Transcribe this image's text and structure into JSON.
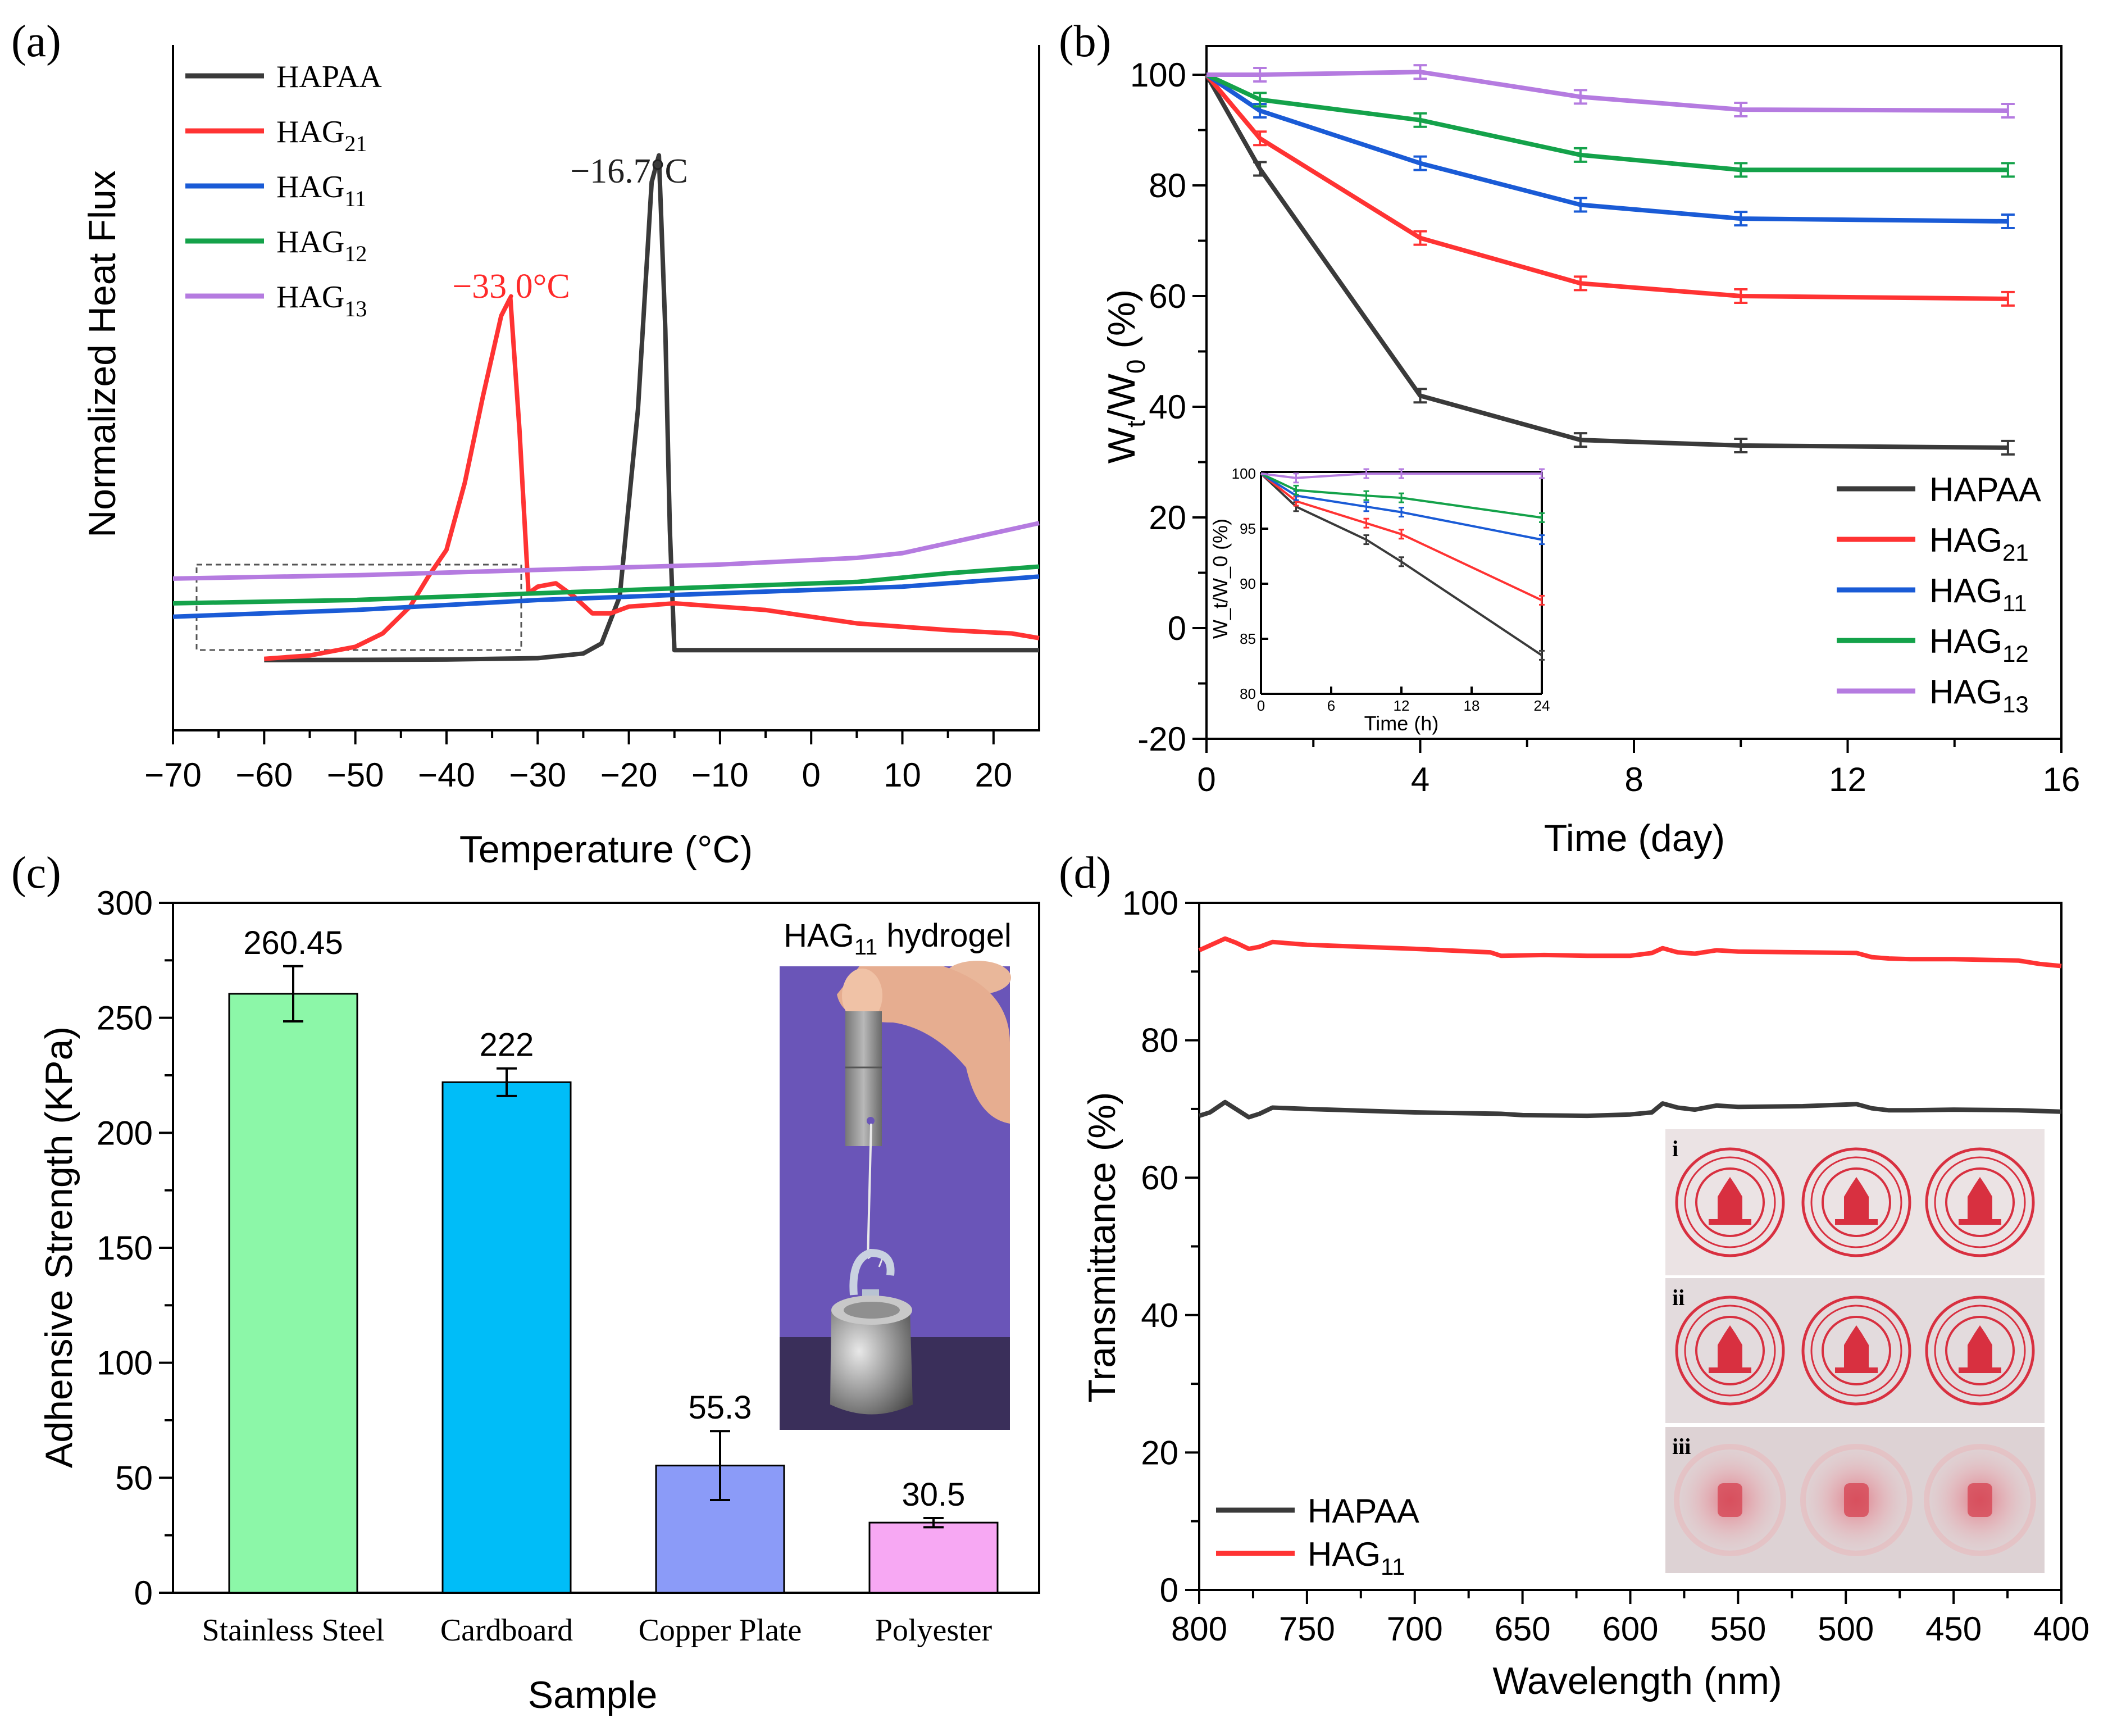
{
  "panels": {
    "a": "(a)",
    "b": "(b)",
    "c": "(c)",
    "d": "(d)"
  },
  "chart_data": [
    {
      "id": "a",
      "type": "line",
      "title": "",
      "xlabel": "Temperature (°C)",
      "ylabel": "Normalized Heat Flux",
      "xlim": [
        -70,
        25
      ],
      "xticks": [
        -70,
        -60,
        -50,
        -40,
        -30,
        -20,
        -10,
        0,
        10,
        20
      ],
      "xtick_labels": [
        "−70",
        "−60",
        "−50",
        "−40",
        "−30",
        "−20",
        "−10",
        "0",
        "10",
        "20"
      ],
      "ylim": [
        0,
        1
      ],
      "legend": [
        {
          "base": "HAPAA",
          "sub": ""
        },
        {
          "base": "HAG",
          "sub": "21"
        },
        {
          "base": "HAG",
          "sub": "11"
        },
        {
          "base": "HAG",
          "sub": "12"
        },
        {
          "base": "HAG",
          "sub": "13"
        }
      ],
      "annotations": [
        {
          "text": "−16.7°C",
          "x": -16.7,
          "y": 0.78,
          "color": "#222222"
        },
        {
          "text": "−33.0°C",
          "x": -33.0,
          "y": 0.62,
          "color": "#ff2a2a"
        }
      ],
      "series": [
        {
          "name": "HAPAA",
          "color": "#3a3a3a",
          "x": [
            -60,
            -40,
            -30,
            -25,
            -23,
            -21,
            -19,
            -17.5,
            -16.7,
            -16,
            -15.5,
            -15,
            -10,
            0,
            10,
            25
          ],
          "y": [
            0.105,
            0.106,
            0.108,
            0.115,
            0.13,
            0.2,
            0.48,
            0.82,
            0.86,
            0.6,
            0.3,
            0.12,
            0.12,
            0.12,
            0.12,
            0.12
          ]
        },
        {
          "name": "HAG21",
          "color": "#ff3333",
          "x": [
            -60,
            -55,
            -50,
            -47,
            -44,
            -42,
            -40,
            -38,
            -36,
            -34,
            -33,
            -32,
            -31,
            -30,
            -28,
            -26,
            -24,
            -22,
            -20,
            -15,
            -5,
            5,
            15,
            22,
            25
          ],
          "y": [
            0.107,
            0.112,
            0.125,
            0.145,
            0.185,
            0.23,
            0.27,
            0.37,
            0.5,
            0.62,
            0.647,
            0.45,
            0.205,
            0.215,
            0.22,
            0.2,
            0.175,
            0.175,
            0.185,
            0.19,
            0.18,
            0.16,
            0.15,
            0.145,
            0.138
          ]
        },
        {
          "name": "HAG11",
          "color": "#1a5bd6",
          "x": [
            -70,
            -50,
            -30,
            -10,
            10,
            25
          ],
          "y": [
            0.17,
            0.18,
            0.195,
            0.205,
            0.215,
            0.23
          ]
        },
        {
          "name": "HAG12",
          "color": "#14a24a",
          "x": [
            -70,
            -50,
            -30,
            -10,
            5,
            15,
            25
          ],
          "y": [
            0.19,
            0.195,
            0.205,
            0.215,
            0.222,
            0.235,
            0.245
          ]
        },
        {
          "name": "HAG13",
          "color": "#b57be0",
          "x": [
            -70,
            -50,
            -30,
            -10,
            5,
            10,
            15,
            20,
            25
          ],
          "y": [
            0.227,
            0.232,
            0.24,
            0.248,
            0.258,
            0.265,
            0.28,
            0.295,
            0.31
          ]
        }
      ]
    },
    {
      "id": "b",
      "type": "line",
      "title": "",
      "xlabel": "Time (day)",
      "ylabel": "W_t/W_0 (%)",
      "ylabel_parts": {
        "w1": "W",
        "s1": "t",
        "slash": "/W",
        "s2": "0",
        "unit": " (%)"
      },
      "xlim": [
        0,
        16
      ],
      "ylim": [
        -20,
        100
      ],
      "xticks": [
        0,
        4,
        8,
        12,
        16
      ],
      "yticks": [
        -20,
        0,
        20,
        40,
        60,
        80,
        100
      ],
      "legend": [
        {
          "base": "HAPAA",
          "sub": ""
        },
        {
          "base": "HAG",
          "sub": "21"
        },
        {
          "base": "HAG",
          "sub": "11"
        },
        {
          "base": "HAG",
          "sub": "12"
        },
        {
          "base": "HAG",
          "sub": "13"
        }
      ],
      "series": [
        {
          "name": "HAPAA",
          "color": "#3a3a3a",
          "x": [
            0,
            1,
            4,
            7,
            10,
            15
          ],
          "y": [
            100,
            83,
            42,
            34,
            33,
            32.6
          ]
        },
        {
          "name": "HAG21",
          "color": "#ff3333",
          "x": [
            0,
            1,
            4,
            7,
            10,
            15
          ],
          "y": [
            100,
            88.5,
            70.5,
            62.3,
            60,
            59.5
          ]
        },
        {
          "name": "HAG11",
          "color": "#1a5bd6",
          "x": [
            0,
            1,
            4,
            7,
            10,
            15
          ],
          "y": [
            100,
            93.5,
            84,
            76.5,
            74,
            73.5
          ]
        },
        {
          "name": "HAG12",
          "color": "#14a24a",
          "x": [
            0,
            1,
            4,
            7,
            10,
            15
          ],
          "y": [
            100,
            95.5,
            91.8,
            85.5,
            82.8,
            82.8
          ]
        },
        {
          "name": "HAG13",
          "color": "#b57be0",
          "x": [
            0,
            1,
            4,
            7,
            10,
            15
          ],
          "y": [
            100,
            100,
            100.5,
            96,
            93.7,
            93.5
          ]
        }
      ],
      "inset": {
        "xlabel": "Time (h)",
        "ylabel": "W_t/W_0 (%)",
        "xlim": [
          0,
          24
        ],
        "ylim": [
          80,
          100
        ],
        "xticks": [
          0,
          6,
          12,
          18,
          24
        ],
        "yticks": [
          80,
          85,
          90,
          95,
          100
        ],
        "series": [
          {
            "name": "HAPAA",
            "color": "#3a3a3a",
            "x": [
              0,
              3,
              9,
              12,
              24
            ],
            "y": [
              100,
              97,
              94,
              92,
              83.5
            ]
          },
          {
            "name": "HAG21",
            "color": "#ff3333",
            "x": [
              0,
              3,
              9,
              12,
              24
            ],
            "y": [
              100,
              97.5,
              95.5,
              94.5,
              88.5
            ]
          },
          {
            "name": "HAG11",
            "color": "#1a5bd6",
            "x": [
              0,
              3,
              9,
              12,
              24
            ],
            "y": [
              100,
              98,
              97,
              96.5,
              94
            ]
          },
          {
            "name": "HAG12",
            "color": "#14a24a",
            "x": [
              0,
              3,
              9,
              12,
              24
            ],
            "y": [
              100,
              98.5,
              98,
              97.8,
              96
            ]
          },
          {
            "name": "HAG13",
            "color": "#b57be0",
            "x": [
              0,
              3,
              9,
              12,
              24
            ],
            "y": [
              100,
              99.6,
              100,
              100,
              100
            ]
          }
        ]
      }
    },
    {
      "id": "c",
      "type": "bar",
      "title": "",
      "xlabel": "Sample",
      "ylabel": "Adhensive Strength (KPa)",
      "ylim": [
        0,
        300
      ],
      "yticks": [
        0,
        50,
        100,
        150,
        200,
        250,
        300
      ],
      "categories": [
        "Stainless Steel",
        "Cardboard",
        "Copper Plate",
        "Polyester"
      ],
      "values": [
        260.45,
        222,
        55.3,
        30.5
      ],
      "value_labels": [
        "260.45",
        "222",
        "55.3",
        "30.5"
      ],
      "errors": [
        12,
        6,
        15,
        2
      ],
      "colors": [
        "#8cf7a8",
        "#00bdf8",
        "#8b9bf8",
        "#f7a8f3"
      ],
      "photo_label": {
        "base": "HAG",
        "sub": "11",
        "rest": " hydrogel"
      }
    },
    {
      "id": "d",
      "type": "line",
      "title": "",
      "xlabel": "Wavelength (nm)",
      "ylabel": "Transmittance (%)",
      "xlim": [
        800,
        400
      ],
      "ylim": [
        0,
        100
      ],
      "xticks": [
        800,
        750,
        700,
        650,
        600,
        550,
        500,
        450,
        400
      ],
      "yticks": [
        0,
        20,
        40,
        60,
        80,
        100
      ],
      "legend": [
        {
          "base": "HAPAA",
          "sub": ""
        },
        {
          "base": "HAG",
          "sub": "11"
        }
      ],
      "series": [
        {
          "name": "HAPAA",
          "color": "#3a3a3a",
          "x": [
            800,
            795,
            788,
            783,
            777,
            772,
            766,
            750,
            700,
            660,
            650,
            620,
            600,
            590,
            585,
            578,
            570,
            560,
            550,
            520,
            495,
            488,
            480,
            470,
            450,
            420,
            400
          ],
          "y": [
            69,
            69.5,
            71,
            70,
            68.8,
            69.3,
            70.2,
            70,
            69.5,
            69.3,
            69.1,
            69,
            69.2,
            69.5,
            70.8,
            70.2,
            69.9,
            70.5,
            70.3,
            70.4,
            70.7,
            70.1,
            69.8,
            69.8,
            69.9,
            69.8,
            69.6
          ]
        },
        {
          "name": "HAG11",
          "color": "#ff3333",
          "x": [
            800,
            795,
            788,
            783,
            777,
            772,
            766,
            750,
            700,
            665,
            660,
            640,
            620,
            600,
            590,
            585,
            578,
            570,
            560,
            550,
            520,
            495,
            488,
            480,
            470,
            450,
            420,
            410,
            400
          ],
          "y": [
            93.1,
            93.8,
            94.8,
            94.2,
            93.3,
            93.6,
            94.3,
            93.9,
            93.3,
            92.8,
            92.3,
            92.4,
            92.3,
            92.3,
            92.7,
            93.4,
            92.8,
            92.6,
            93.1,
            92.9,
            92.8,
            92.7,
            92.1,
            91.9,
            91.8,
            91.8,
            91.6,
            91.1,
            90.8
          ]
        }
      ],
      "image_labels": [
        "i",
        "ii",
        "iii"
      ]
    }
  ]
}
